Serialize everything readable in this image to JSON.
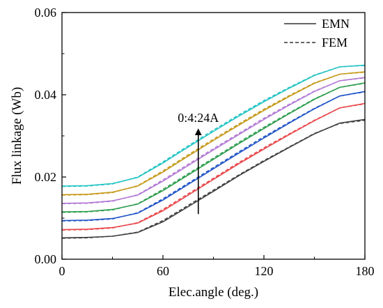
{
  "chart_data": {
    "type": "line",
    "xlabel": "Elec.angle (deg.)",
    "ylabel": "Flux linkage (Wb)",
    "xlim": [
      0,
      180
    ],
    "ylim": [
      0,
      0.06
    ],
    "xticks": [
      0,
      60,
      120,
      180
    ],
    "xtick_labels": [
      "0",
      "60",
      "120",
      "180"
    ],
    "yticks": [
      0,
      0.02,
      0.04,
      0.06
    ],
    "ytick_labels": [
      "0.00",
      "0.02",
      "0.04",
      "0.06"
    ],
    "grid": false,
    "legend_position": "top-right",
    "legend": [
      {
        "label": "EMN",
        "style": "solid"
      },
      {
        "label": "FEM",
        "style": "dashed"
      }
    ],
    "annotation": {
      "text": "0:4:24A",
      "arrow_x": 81,
      "arrow_from": 0.011,
      "arrow_to": 0.032
    },
    "x": [
      0,
      15,
      30,
      45,
      60,
      75,
      90,
      105,
      120,
      135,
      150,
      165,
      180
    ],
    "series": [
      {
        "color": "#404040",
        "emn": [
          0.0052,
          0.0053,
          0.0056,
          0.0065,
          0.0091,
          0.0128,
          0.0165,
          0.0203,
          0.0238,
          0.0272,
          0.0305,
          0.0331,
          0.034
        ],
        "fem": [
          0.0051,
          0.0052,
          0.0056,
          0.0066,
          0.0094,
          0.0131,
          0.0168,
          0.0205,
          0.024,
          0.0273,
          0.0306,
          0.033,
          0.0338
        ]
      },
      {
        "color": "#e8474a",
        "emn": [
          0.0072,
          0.0073,
          0.0077,
          0.0088,
          0.0118,
          0.0156,
          0.0194,
          0.0232,
          0.0268,
          0.0303,
          0.0337,
          0.0368,
          0.0379
        ],
        "fem": [
          0.0071,
          0.0072,
          0.0076,
          0.0089,
          0.0121,
          0.0159,
          0.0197,
          0.0235,
          0.0271,
          0.0305,
          0.0338,
          0.0368,
          0.0378
        ]
      },
      {
        "color": "#2255c8",
        "emn": [
          0.0094,
          0.0095,
          0.0099,
          0.0112,
          0.0144,
          0.0182,
          0.022,
          0.0258,
          0.0295,
          0.0331,
          0.0366,
          0.0397,
          0.0408
        ],
        "fem": [
          0.0093,
          0.0094,
          0.0098,
          0.0113,
          0.0147,
          0.0185,
          0.0223,
          0.0261,
          0.0298,
          0.0333,
          0.0367,
          0.0397,
          0.0407
        ]
      },
      {
        "color": "#2e9e4e",
        "emn": [
          0.0115,
          0.0116,
          0.0121,
          0.0134,
          0.0167,
          0.0205,
          0.0243,
          0.0281,
          0.0318,
          0.0354,
          0.0389,
          0.0418,
          0.0429
        ],
        "fem": [
          0.0114,
          0.0115,
          0.012,
          0.0135,
          0.017,
          0.0208,
          0.0246,
          0.0284,
          0.0321,
          0.0356,
          0.039,
          0.0418,
          0.0428
        ]
      },
      {
        "color": "#b37ad6",
        "emn": [
          0.0136,
          0.0137,
          0.0142,
          0.0156,
          0.019,
          0.0228,
          0.0266,
          0.0303,
          0.034,
          0.0375,
          0.0408,
          0.0434,
          0.0442
        ],
        "fem": [
          0.0135,
          0.0136,
          0.0141,
          0.0157,
          0.0193,
          0.0231,
          0.0269,
          0.0306,
          0.0343,
          0.0377,
          0.0409,
          0.0434,
          0.0441
        ]
      },
      {
        "color": "#c69a1c",
        "emn": [
          0.0157,
          0.0158,
          0.0163,
          0.0178,
          0.0212,
          0.0251,
          0.0289,
          0.0326,
          0.0362,
          0.0396,
          0.0428,
          0.045,
          0.0456
        ],
        "fem": [
          0.0156,
          0.0157,
          0.0162,
          0.0179,
          0.0215,
          0.0254,
          0.0292,
          0.0329,
          0.0365,
          0.0398,
          0.0429,
          0.045,
          0.0455
        ]
      },
      {
        "color": "#27c4c4",
        "emn": [
          0.0178,
          0.0179,
          0.0184,
          0.0199,
          0.0234,
          0.0273,
          0.0311,
          0.0348,
          0.0383,
          0.0416,
          0.0447,
          0.0468,
          0.0472
        ],
        "fem": [
          0.0177,
          0.0178,
          0.0183,
          0.02,
          0.0237,
          0.0276,
          0.0314,
          0.0351,
          0.0386,
          0.0418,
          0.0448,
          0.0468,
          0.0471
        ]
      }
    ]
  }
}
